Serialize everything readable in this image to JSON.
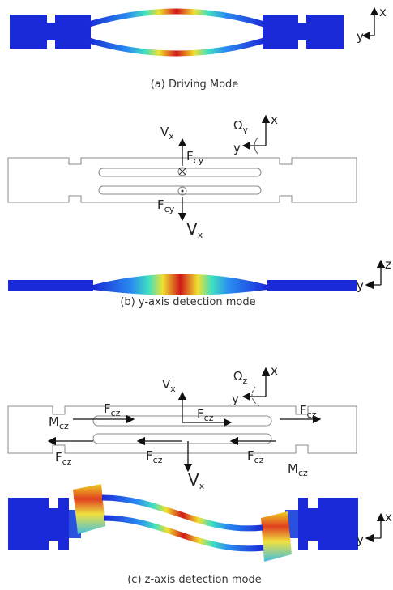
{
  "panel_a": {
    "caption": "(a) Driving Mode",
    "axis_labels": [
      {
        "text": "x"
      },
      {
        "text": "y"
      }
    ]
  },
  "panel_b": {
    "caption": "(b) y-axis detection mode",
    "labels": [
      {
        "text": "V",
        "sub": "x"
      },
      {
        "text": "F",
        "sub": "cy"
      },
      {
        "text": "F",
        "sub": "cy"
      },
      {
        "text": "V",
        "sub": "x"
      },
      {
        "text": "Ω",
        "sub": "y"
      },
      {
        "text": "x"
      },
      {
        "text": "y"
      }
    ],
    "axis_labels": [
      {
        "text": "z"
      },
      {
        "text": "y"
      }
    ]
  },
  "panel_c": {
    "caption": "(c) z-axis detection mode",
    "labels": [
      {
        "text": "M",
        "sub": "cz"
      },
      {
        "text": "F",
        "sub": "cz"
      },
      {
        "text": "V",
        "sub": "x"
      },
      {
        "text": "F",
        "sub": "cz"
      },
      {
        "text": "Ω",
        "sub": "z"
      },
      {
        "text": "x"
      },
      {
        "text": "y"
      },
      {
        "text": "F",
        "sub": "cz"
      },
      {
        "text": "F",
        "sub": "cz"
      },
      {
        "text": "F",
        "sub": "cz"
      },
      {
        "text": "F",
        "sub": "cz"
      },
      {
        "text": "M",
        "sub": "cz"
      },
      {
        "text": "V",
        "sub": "x"
      }
    ],
    "axis_labels": [
      {
        "text": "x"
      },
      {
        "text": "y"
      }
    ]
  }
}
